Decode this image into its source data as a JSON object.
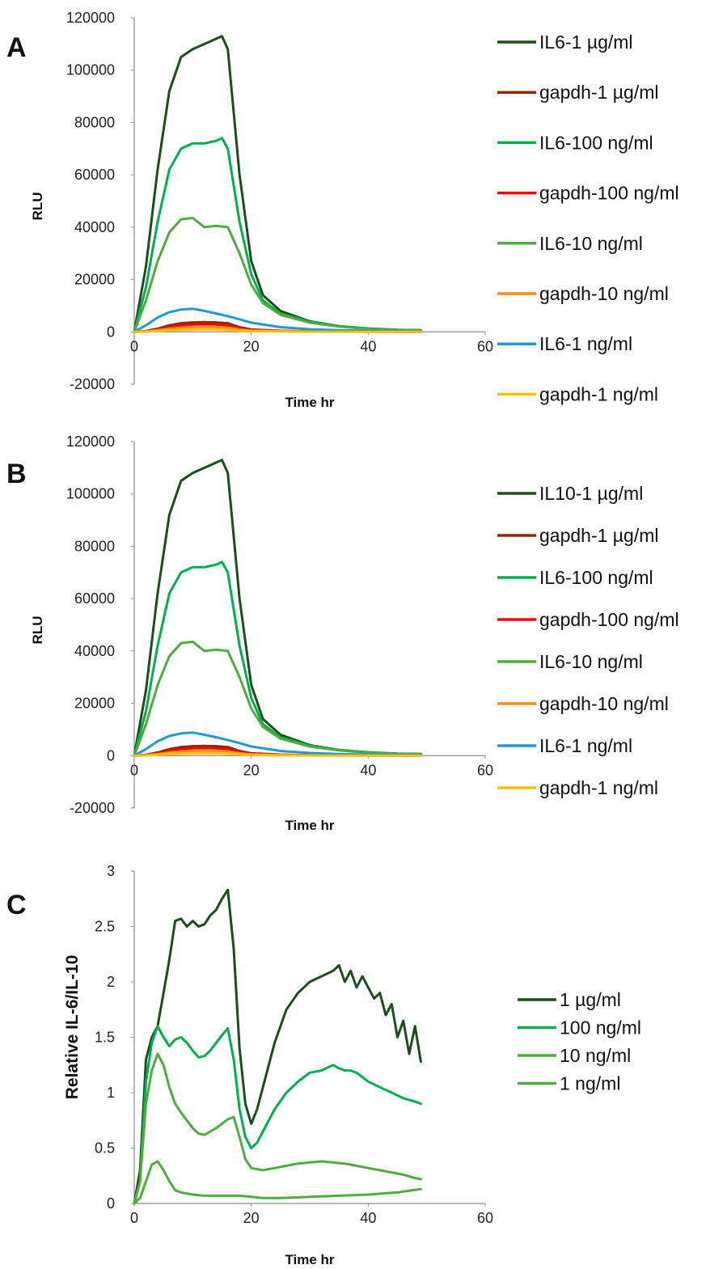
{
  "chart_data": [
    {
      "panel": "A",
      "type": "line",
      "xlabel": "Time hr",
      "ylabel": "RLU",
      "xlim": [
        0,
        60
      ],
      "ylim": [
        -20000,
        120000
      ],
      "xticks": [
        "0",
        "20",
        "40",
        "60"
      ],
      "yticks": [
        "-20000",
        "0",
        "20000",
        "40000",
        "60000",
        "80000",
        "100000",
        "120000"
      ],
      "legend_position": "right",
      "series": [
        {
          "name": "IL6-1 µg/ml",
          "color": "#1e4d1c",
          "x": [
            0,
            2,
            4,
            6,
            8,
            10,
            12,
            14,
            15,
            16,
            18,
            20,
            22,
            25,
            30,
            35,
            40,
            45,
            49
          ],
          "y": [
            0,
            25000,
            62000,
            92000,
            105000,
            108000,
            110000,
            112000,
            113000,
            108000,
            60000,
            27000,
            14000,
            8000,
            4000,
            2200,
            1300,
            800,
            600
          ]
        },
        {
          "name": "gapdh-1 µg/ml",
          "color": "#8b2c02",
          "x": [
            0,
            2,
            4,
            6,
            8,
            10,
            12,
            14,
            16,
            18,
            20,
            25,
            30,
            40,
            49
          ],
          "y": [
            0,
            300,
            1200,
            2500,
            3300,
            3600,
            3700,
            3600,
            3300,
            1800,
            900,
            400,
            200,
            100,
            50
          ]
        },
        {
          "name": "IL6-100 ng/ml",
          "color": "#00b050",
          "x": [
            0,
            2,
            4,
            6,
            8,
            10,
            12,
            14,
            15,
            16,
            18,
            20,
            22,
            25,
            30,
            35,
            40,
            45,
            49
          ],
          "y": [
            0,
            17000,
            42000,
            62000,
            70000,
            72000,
            72000,
            73000,
            74000,
            70000,
            42000,
            22000,
            12000,
            7000,
            3800,
            2100,
            1200,
            700,
            500
          ]
        },
        {
          "name": "gapdh-100 ng/ml",
          "color": "#ff0000",
          "x": [
            0,
            2,
            4,
            6,
            8,
            10,
            12,
            14,
            16,
            18,
            20,
            25,
            30,
            40,
            49
          ],
          "y": [
            0,
            200,
            900,
            1900,
            2500,
            2800,
            2900,
            2800,
            2500,
            1400,
            700,
            300,
            150,
            80,
            40
          ]
        },
        {
          "name": "IL6-10 ng/ml",
          "color": "#4fad3f",
          "x": [
            0,
            2,
            4,
            6,
            8,
            10,
            12,
            14,
            16,
            18,
            20,
            22,
            25,
            30,
            35,
            40,
            45,
            49
          ],
          "y": [
            0,
            12000,
            27000,
            38000,
            43000,
            43500,
            40000,
            40500,
            40000,
            30000,
            18000,
            11000,
            6500,
            3500,
            2000,
            1100,
            700,
            500
          ]
        },
        {
          "name": "gapdh-10 ng/ml",
          "color": "#ff8c1a",
          "x": [
            0,
            2,
            4,
            6,
            8,
            10,
            12,
            14,
            16,
            18,
            20,
            25,
            30,
            40,
            49
          ],
          "y": [
            0,
            150,
            600,
            1200,
            1600,
            1800,
            1900,
            1800,
            1600,
            900,
            500,
            250,
            120,
            60,
            30
          ]
        },
        {
          "name": "IL6-1 ng/ml",
          "color": "#1f9ad6",
          "x": [
            0,
            2,
            4,
            6,
            8,
            10,
            12,
            14,
            16,
            18,
            20,
            25,
            30,
            35,
            40,
            45,
            49
          ],
          "y": [
            0,
            2500,
            5500,
            7500,
            8500,
            8800,
            8000,
            7000,
            6000,
            4800,
            3500,
            1800,
            1000,
            600,
            400,
            300,
            200
          ]
        },
        {
          "name": "gapdh-1 ng/ml",
          "color": "#ffc000",
          "x": [
            0,
            2,
            4,
            6,
            8,
            10,
            12,
            14,
            16,
            18,
            20,
            25,
            30,
            40,
            49
          ],
          "y": [
            0,
            80,
            300,
            600,
            800,
            900,
            950,
            900,
            800,
            450,
            250,
            120,
            60,
            30,
            20
          ]
        }
      ]
    },
    {
      "panel": "B",
      "type": "line",
      "xlabel": "Time hr",
      "ylabel": "RLU",
      "xlim": [
        0,
        60
      ],
      "ylim": [
        -20000,
        120000
      ],
      "xticks": [
        "0",
        "20",
        "40",
        "60"
      ],
      "yticks": [
        "-20000",
        "0",
        "20000",
        "40000",
        "60000",
        "80000",
        "100000",
        "120000"
      ],
      "legend_position": "right",
      "series": [
        {
          "name": "IL10-1 µg/ml",
          "color": "#1e4d1c",
          "x": [
            0,
            2,
            4,
            6,
            8,
            10,
            12,
            14,
            15,
            16,
            18,
            20,
            22,
            25,
            30,
            35,
            40,
            45,
            49
          ],
          "y": [
            0,
            25000,
            62000,
            92000,
            105000,
            108000,
            110000,
            112000,
            113000,
            108000,
            60000,
            27000,
            14000,
            8000,
            4000,
            2200,
            1300,
            800,
            600
          ]
        },
        {
          "name": "gapdh-1 µg/ml",
          "color": "#8b2c02",
          "x": [
            0,
            2,
            4,
            6,
            8,
            10,
            12,
            14,
            16,
            18,
            20,
            25,
            30,
            40,
            49
          ],
          "y": [
            0,
            300,
            1200,
            2500,
            3300,
            3600,
            3700,
            3600,
            3300,
            1800,
            900,
            400,
            200,
            100,
            50
          ]
        },
        {
          "name": "IL6-100 ng/ml",
          "color": "#00b050",
          "x": [
            0,
            2,
            4,
            6,
            8,
            10,
            12,
            14,
            15,
            16,
            18,
            20,
            22,
            25,
            30,
            35,
            40,
            45,
            49
          ],
          "y": [
            0,
            17000,
            42000,
            62000,
            70000,
            72000,
            72000,
            73000,
            74000,
            70000,
            42000,
            22000,
            12000,
            7000,
            3800,
            2100,
            1200,
            700,
            500
          ]
        },
        {
          "name": "gapdh-100 ng/ml",
          "color": "#ff0000",
          "x": [
            0,
            2,
            4,
            6,
            8,
            10,
            12,
            14,
            16,
            18,
            20,
            25,
            30,
            40,
            49
          ],
          "y": [
            0,
            200,
            900,
            1900,
            2500,
            2800,
            2900,
            2800,
            2500,
            1400,
            700,
            300,
            150,
            80,
            40
          ]
        },
        {
          "name": "IL6-10 ng/ml",
          "color": "#4fad3f",
          "x": [
            0,
            2,
            4,
            6,
            8,
            10,
            12,
            14,
            16,
            18,
            20,
            22,
            25,
            30,
            35,
            40,
            45,
            49
          ],
          "y": [
            0,
            12000,
            27000,
            38000,
            43000,
            43500,
            40000,
            40500,
            40000,
            30000,
            18000,
            11000,
            6500,
            3500,
            2000,
            1100,
            700,
            500
          ]
        },
        {
          "name": "gapdh-10 ng/ml",
          "color": "#ff8c1a",
          "x": [
            0,
            2,
            4,
            6,
            8,
            10,
            12,
            14,
            16,
            18,
            20,
            25,
            30,
            40,
            49
          ],
          "y": [
            0,
            150,
            600,
            1200,
            1600,
            1800,
            1900,
            1800,
            1600,
            900,
            500,
            250,
            120,
            60,
            30
          ]
        },
        {
          "name": "IL6-1 ng/ml",
          "color": "#1f9ad6",
          "x": [
            0,
            2,
            4,
            6,
            8,
            10,
            12,
            14,
            16,
            18,
            20,
            25,
            30,
            35,
            40,
            45,
            49
          ],
          "y": [
            0,
            2500,
            5500,
            7500,
            8500,
            8800,
            8000,
            7000,
            6000,
            4800,
            3500,
            1800,
            1000,
            600,
            400,
            300,
            200
          ]
        },
        {
          "name": "gapdh-1 ng/ml",
          "color": "#ffc000",
          "x": [
            0,
            2,
            4,
            6,
            8,
            10,
            12,
            14,
            16,
            18,
            20,
            25,
            30,
            40,
            49
          ],
          "y": [
            0,
            80,
            300,
            600,
            800,
            900,
            950,
            900,
            800,
            450,
            250,
            120,
            60,
            30,
            20
          ]
        }
      ]
    },
    {
      "panel": "C",
      "type": "line",
      "xlabel": "Time hr",
      "ylabel": "Relative IL-6/IL-10",
      "xlim": [
        0,
        60
      ],
      "ylim": [
        0,
        3
      ],
      "xticks": [
        "0",
        "20",
        "40",
        "60"
      ],
      "yticks": [
        "0",
        "0.5",
        "1",
        "1.5",
        "2",
        "2.5",
        "3"
      ],
      "legend_position": "right",
      "series": [
        {
          "name": "1 µg/ml",
          "color": "#1e4d1c",
          "x": [
            0,
            1,
            2,
            3,
            4,
            5,
            6,
            7,
            8,
            9,
            10,
            11,
            12,
            13,
            14,
            15,
            16,
            17,
            18,
            19,
            20,
            21,
            22,
            24,
            26,
            28,
            30,
            32,
            34,
            35,
            36,
            37,
            38,
            39,
            40,
            41,
            42,
            43,
            44,
            45,
            46,
            47,
            48,
            49
          ],
          "y": [
            0,
            0.3,
            1.3,
            1.5,
            1.6,
            1.9,
            2.2,
            2.55,
            2.57,
            2.5,
            2.55,
            2.5,
            2.52,
            2.6,
            2.65,
            2.75,
            2.83,
            2.3,
            1.4,
            0.9,
            0.72,
            0.85,
            1.05,
            1.45,
            1.75,
            1.9,
            2.0,
            2.05,
            2.1,
            2.15,
            2.0,
            2.1,
            1.95,
            2.05,
            1.95,
            1.85,
            1.9,
            1.7,
            1.8,
            1.5,
            1.65,
            1.35,
            1.6,
            1.28
          ]
        },
        {
          "name": "100 ng/ml",
          "color": "#00b050",
          "x": [
            0,
            1,
            2,
            3,
            4,
            5,
            6,
            7,
            8,
            9,
            10,
            11,
            12,
            13,
            14,
            15,
            16,
            17,
            18,
            19,
            20,
            21,
            22,
            24,
            26,
            28,
            30,
            32,
            34,
            35,
            36,
            37,
            38,
            40,
            42,
            44,
            46,
            48,
            49
          ],
          "y": [
            0,
            0.2,
            1.1,
            1.45,
            1.6,
            1.5,
            1.42,
            1.48,
            1.5,
            1.45,
            1.38,
            1.32,
            1.33,
            1.38,
            1.45,
            1.52,
            1.58,
            1.3,
            0.85,
            0.6,
            0.5,
            0.55,
            0.65,
            0.85,
            1.0,
            1.1,
            1.18,
            1.2,
            1.25,
            1.22,
            1.2,
            1.2,
            1.18,
            1.1,
            1.05,
            1.0,
            0.95,
            0.92,
            0.9
          ]
        },
        {
          "name": "10 ng/ml",
          "color": "#4fad3f",
          "x": [
            0,
            1,
            2,
            3,
            4,
            5,
            6,
            7,
            8,
            9,
            10,
            11,
            12,
            13,
            14,
            15,
            16,
            17,
            18,
            19,
            20,
            22,
            24,
            26,
            28,
            30,
            32,
            34,
            36,
            38,
            40,
            42,
            44,
            46,
            48,
            49
          ],
          "y": [
            0,
            0.2,
            0.9,
            1.2,
            1.35,
            1.25,
            1.05,
            0.9,
            0.82,
            0.75,
            0.68,
            0.63,
            0.62,
            0.65,
            0.68,
            0.72,
            0.76,
            0.78,
            0.6,
            0.4,
            0.32,
            0.3,
            0.32,
            0.34,
            0.36,
            0.37,
            0.38,
            0.37,
            0.36,
            0.34,
            0.32,
            0.3,
            0.28,
            0.26,
            0.23,
            0.22
          ]
        },
        {
          "name": "1 ng/ml",
          "color": "#4fad3f",
          "x": [
            0,
            1,
            2,
            3,
            4,
            5,
            6,
            7,
            8,
            10,
            12,
            14,
            16,
            18,
            20,
            22,
            25,
            30,
            35,
            40,
            45,
            49
          ],
          "y": [
            0,
            0.05,
            0.2,
            0.35,
            0.38,
            0.3,
            0.2,
            0.12,
            0.1,
            0.08,
            0.07,
            0.07,
            0.07,
            0.07,
            0.06,
            0.05,
            0.05,
            0.06,
            0.07,
            0.08,
            0.1,
            0.13
          ]
        }
      ]
    }
  ],
  "panel_letters": [
    "A",
    "B",
    "C"
  ]
}
